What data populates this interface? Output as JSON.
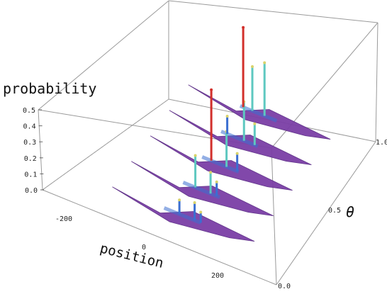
{
  "chart_data": {
    "type": "3d-bar",
    "title": "",
    "zlabel": "probability",
    "xlabel": "position",
    "ylabel": "θ",
    "z_ticks": [
      "0.0",
      "0.1",
      "0.2",
      "0.3",
      "0.4",
      "0.5"
    ],
    "x_ticks": [
      "-200",
      "0",
      "200"
    ],
    "y_ticks": [
      "0.0",
      "0.5",
      "1.0"
    ],
    "zlim": [
      0,
      0.5
    ],
    "xlim": [
      -300,
      300
    ],
    "ylim": [
      0,
      1
    ],
    "slices": [
      {
        "theta": 0.1,
        "peaks": [
          {
            "position": -10,
            "probability": 0.08
          },
          {
            "position": 40,
            "probability": 0.1
          },
          {
            "position": 60,
            "probability": 0.06
          }
        ]
      },
      {
        "theta": 0.3,
        "peaks": [
          {
            "position": -20,
            "probability": 0.18
          },
          {
            "position": 30,
            "probability": 0.12
          },
          {
            "position": 50,
            "probability": 0.08
          }
        ]
      },
      {
        "theta": 0.5,
        "peaks": [
          {
            "position": -30,
            "probability": 0.4
          },
          {
            "position": 20,
            "probability": 0.2
          },
          {
            "position": 55,
            "probability": 0.1
          }
        ]
      },
      {
        "theta": 0.7,
        "peaks": [
          {
            "position": -40,
            "probability": 0.1
          },
          {
            "position": 15,
            "probability": 0.22
          },
          {
            "position": 50,
            "probability": 0.12
          }
        ]
      },
      {
        "theta": 0.9,
        "peaks": [
          {
            "position": -50,
            "probability": 0.45
          },
          {
            "position": -20,
            "probability": 0.25
          },
          {
            "position": 20,
            "probability": 0.3
          }
        ]
      }
    ],
    "colors": {
      "base": "#7b3fa6",
      "low": "#3b6fd1",
      "mid": "#5ec8c0",
      "high": "#d9d36a",
      "peak": "#d2302c",
      "box": "#9a9a9a"
    }
  }
}
